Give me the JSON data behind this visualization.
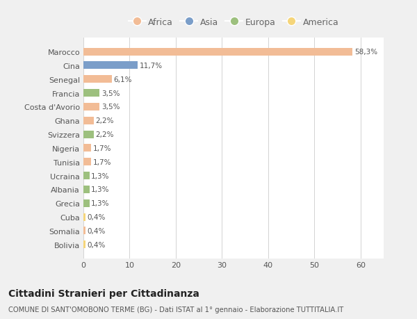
{
  "categories": [
    "Marocco",
    "Cina",
    "Senegal",
    "Francia",
    "Costa d'Avorio",
    "Ghana",
    "Svizzera",
    "Nigeria",
    "Tunisia",
    "Ucraina",
    "Albania",
    "Grecia",
    "Cuba",
    "Somalia",
    "Bolivia"
  ],
  "values": [
    58.3,
    11.7,
    6.1,
    3.5,
    3.5,
    2.2,
    2.2,
    1.7,
    1.7,
    1.3,
    1.3,
    1.3,
    0.4,
    0.4,
    0.4
  ],
  "labels": [
    "58,3%",
    "11,7%",
    "6,1%",
    "3,5%",
    "3,5%",
    "2,2%",
    "2,2%",
    "1,7%",
    "1,7%",
    "1,3%",
    "1,3%",
    "1,3%",
    "0,4%",
    "0,4%",
    "0,4%"
  ],
  "colors": [
    "#F2BC96",
    "#7B9EC9",
    "#F2BC96",
    "#9DC07E",
    "#F2BC96",
    "#F2BC96",
    "#9DC07E",
    "#F2BC96",
    "#F2BC96",
    "#9DC07E",
    "#9DC07E",
    "#9DC07E",
    "#F5D57A",
    "#F2BC96",
    "#F5D57A"
  ],
  "legend": [
    {
      "label": "Africa",
      "color": "#F2BC96"
    },
    {
      "label": "Asia",
      "color": "#7B9EC9"
    },
    {
      "label": "Europa",
      "color": "#9DC07E"
    },
    {
      "label": "America",
      "color": "#F5D57A"
    }
  ],
  "xlim": [
    0,
    65
  ],
  "xticks": [
    0,
    10,
    20,
    30,
    40,
    50,
    60
  ],
  "title": "Cittadini Stranieri per Cittadinanza",
  "subtitle": "COMUNE DI SANT'OMOBONO TERME (BG) - Dati ISTAT al 1° gennaio - Elaborazione TUTTITALIA.IT",
  "background_color": "#f0f0f0",
  "bar_background": "#ffffff",
  "bar_height": 0.55
}
